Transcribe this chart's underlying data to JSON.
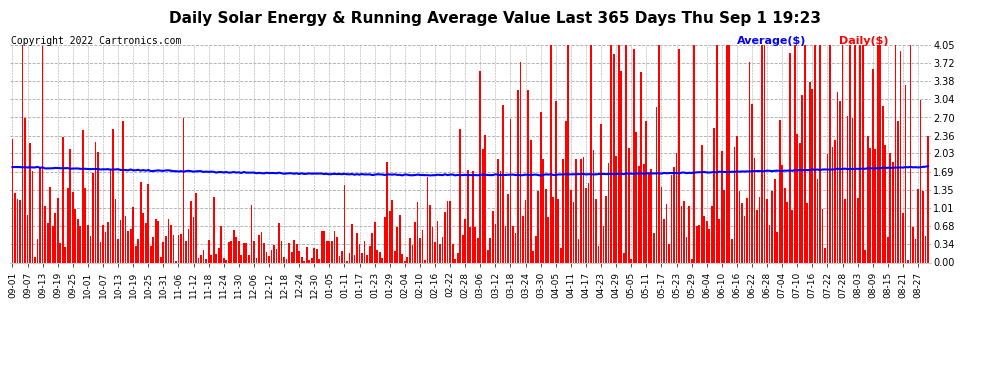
{
  "title": "Daily Solar Energy & Running Average Value Last 365 Days Thu Sep 1 19:23",
  "copyright": "Copyright 2022 Cartronics.com",
  "legend_average": "Average($)",
  "legend_daily": "Daily($)",
  "bar_color": "#FF0000",
  "avg_line_color": "#0000FF",
  "background_color": "#FFFFFF",
  "grid_color": "#AAAAAA",
  "ylabel_values": [
    0.0,
    0.34,
    0.68,
    1.01,
    1.35,
    1.69,
    2.03,
    2.36,
    2.7,
    3.04,
    3.38,
    3.72,
    4.05
  ],
  "ylim": [
    0,
    4.05
  ],
  "x_tick_labels": [
    "09-01",
    "09-07",
    "09-13",
    "09-19",
    "09-25",
    "10-01",
    "10-07",
    "10-13",
    "10-19",
    "10-25",
    "10-31",
    "11-06",
    "11-12",
    "11-18",
    "11-24",
    "11-30",
    "12-06",
    "12-12",
    "12-18",
    "12-24",
    "12-30",
    "01-05",
    "01-11",
    "01-17",
    "01-23",
    "01-29",
    "02-04",
    "02-10",
    "02-16",
    "02-22",
    "02-28",
    "03-06",
    "03-12",
    "03-18",
    "03-24",
    "03-30",
    "04-05",
    "04-11",
    "04-17",
    "04-23",
    "04-29",
    "05-05",
    "05-11",
    "05-17",
    "05-23",
    "05-29",
    "06-04",
    "06-10",
    "06-16",
    "06-22",
    "06-28",
    "07-04",
    "07-10",
    "07-16",
    "07-22",
    "07-28",
    "08-03",
    "08-09",
    "08-15",
    "08-21",
    "08-27"
  ],
  "seed": 42,
  "n_days": 365,
  "title_fontsize": 11,
  "copyright_fontsize": 7,
  "legend_fontsize": 8,
  "tick_fontsize": 7,
  "xtick_fontsize": 6.5
}
